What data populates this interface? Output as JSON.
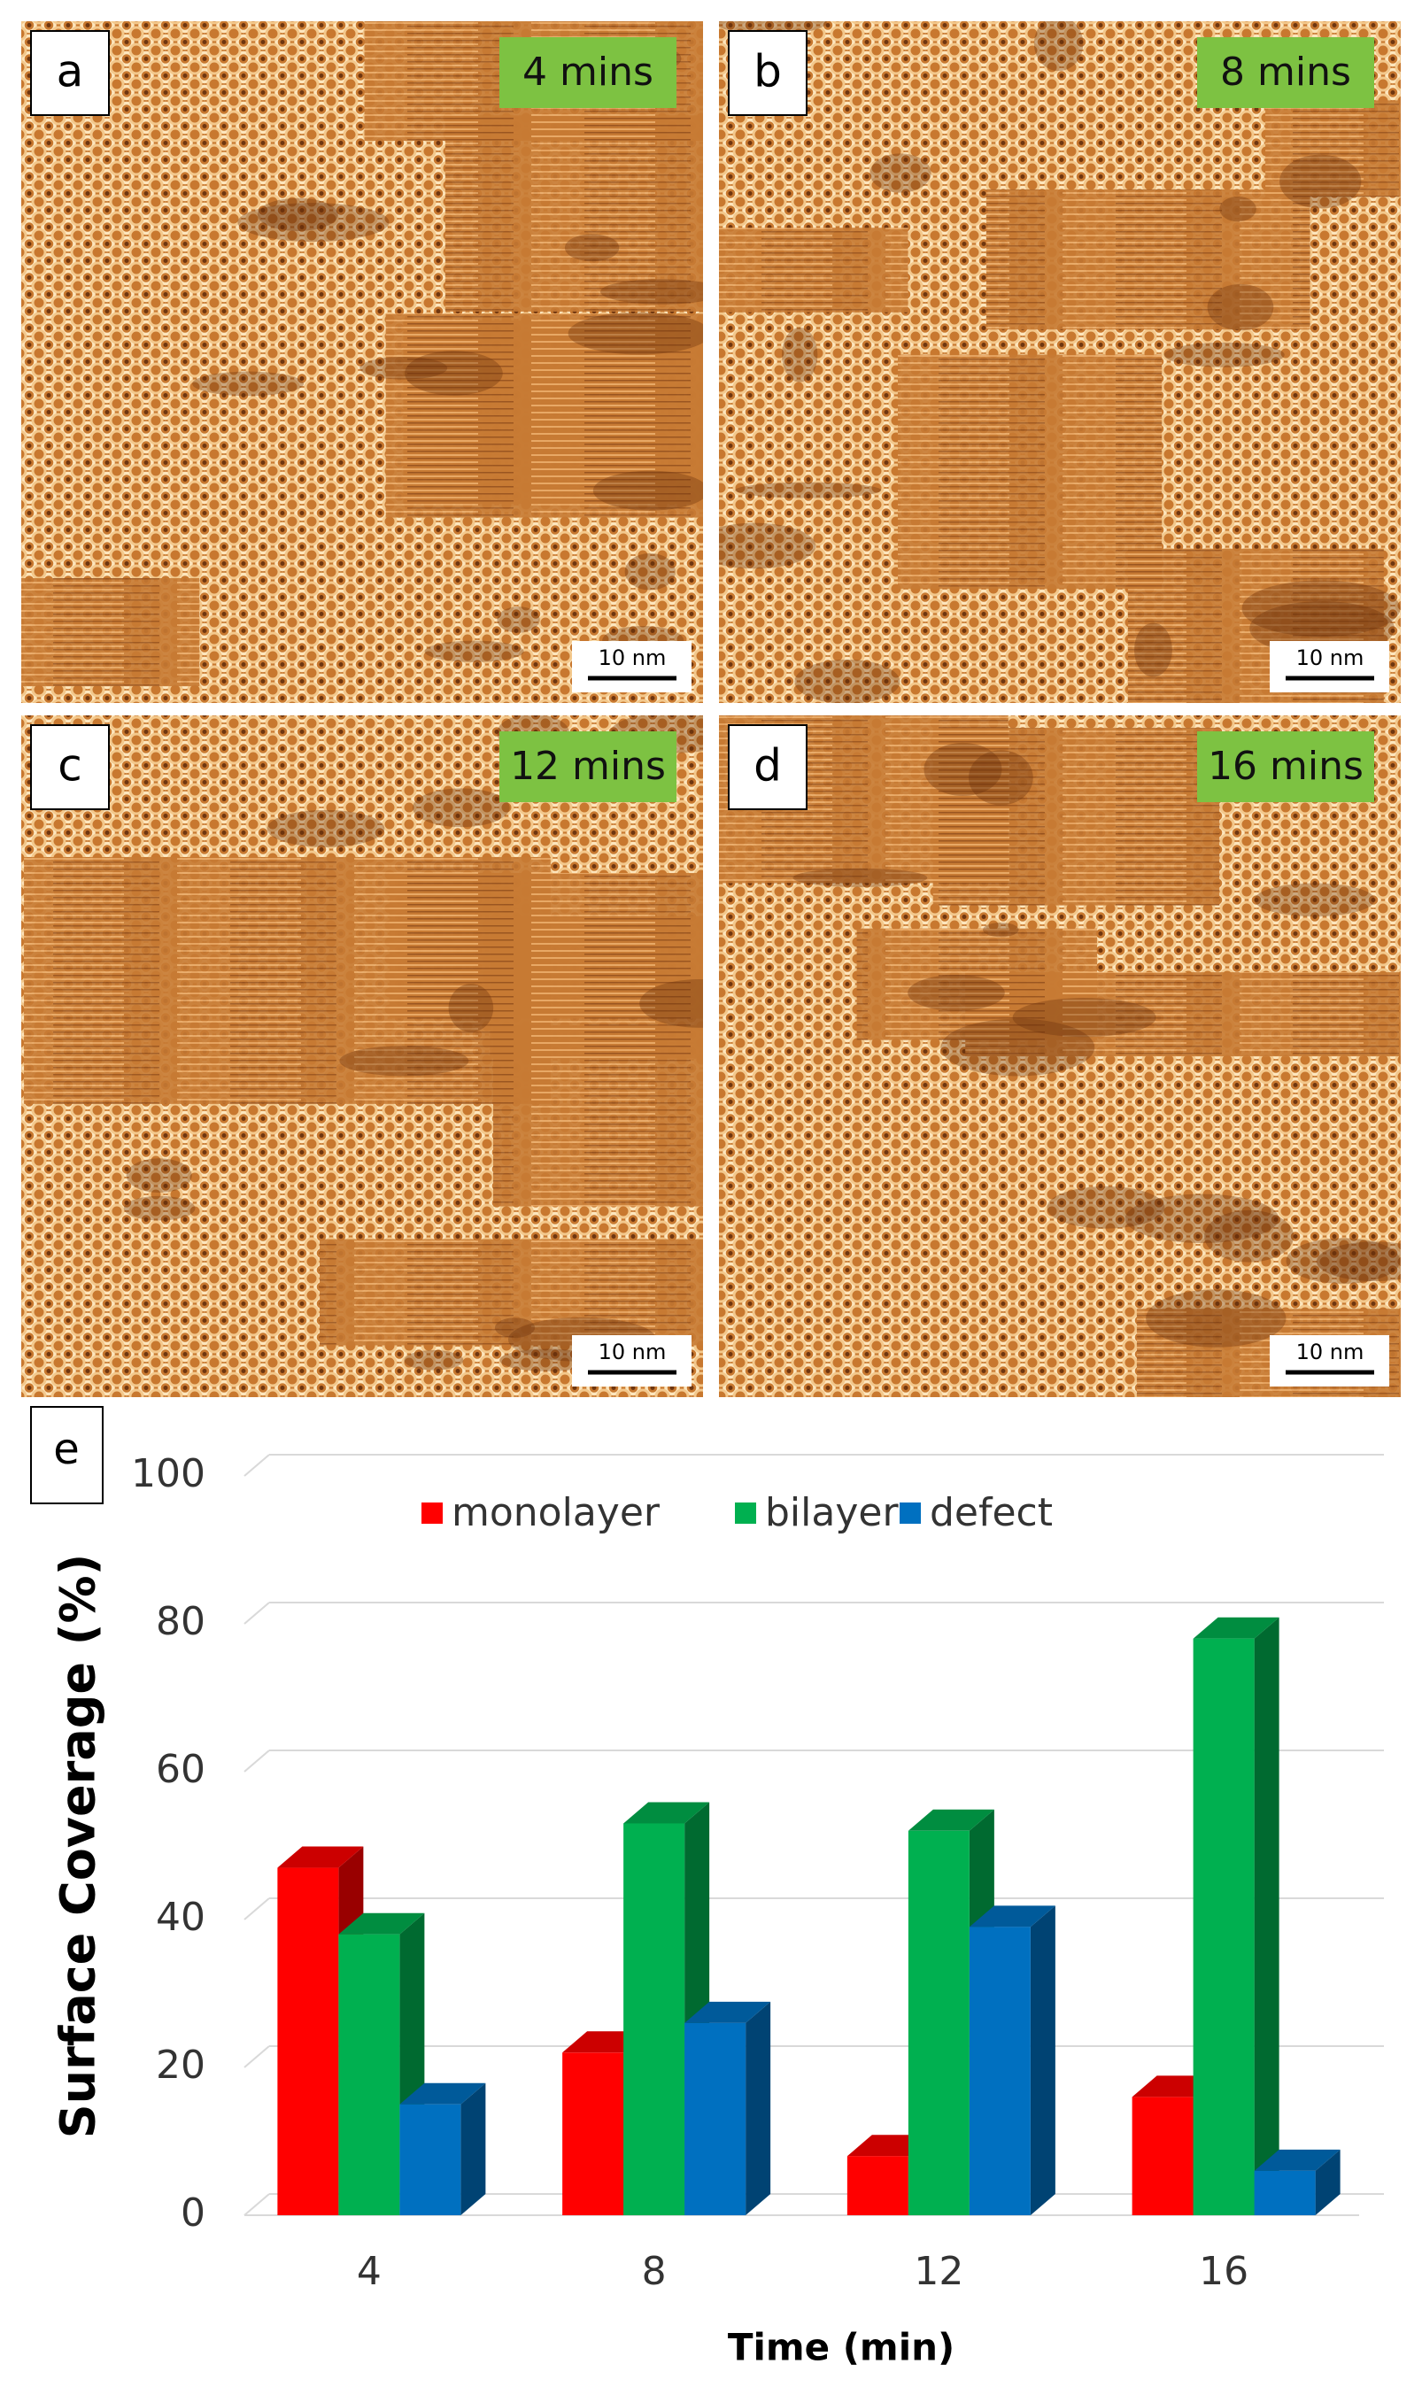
{
  "panels": [
    {
      "label": "a",
      "time": "4 mins",
      "scale": "10 nm"
    },
    {
      "label": "b",
      "time": "8 mins",
      "scale": "10 nm"
    },
    {
      "label": "c",
      "time": "12 mins",
      "scale": "10 nm"
    },
    {
      "label": "d",
      "time": "16 mins",
      "scale": "10 nm"
    }
  ],
  "chart_data": {
    "type": "bar3d",
    "panel_label": "e",
    "x_label": "Time (min)",
    "y_label": "Surface Coverage (%)",
    "categories": [
      "4",
      "8",
      "12",
      "16"
    ],
    "series": [
      {
        "name": "monolayer",
        "color": "#ff0000",
        "values": [
          47,
          22,
          8,
          16
        ]
      },
      {
        "name": "bilayer",
        "color": "#00b050",
        "values": [
          38,
          53,
          52,
          78
        ]
      },
      {
        "name": "defect",
        "color": "#0070c0",
        "values": [
          15,
          26,
          39,
          6
        ]
      }
    ],
    "ylim": [
      0,
      100
    ],
    "yticks": [
      0,
      20,
      40,
      60,
      80,
      100
    ],
    "grid": true,
    "legend": "top"
  }
}
